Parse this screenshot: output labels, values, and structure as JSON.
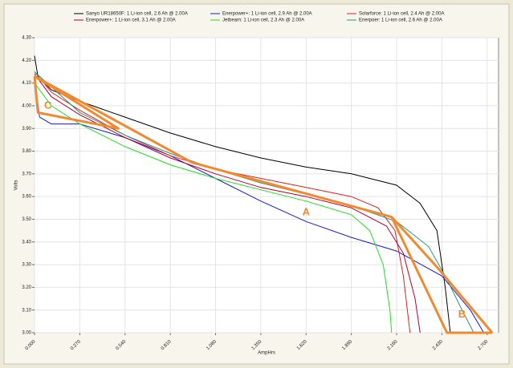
{
  "chart_data": {
    "type": "line",
    "x_label": "AmpHrs",
    "y_label": "Volts",
    "xlim": [
      0,
      2.768
    ],
    "ylim": [
      3.0,
      4.3
    ],
    "xticks": [
      {
        "value": 0,
        "label": "0.000"
      },
      {
        "value": 0.27,
        "label": "0.270"
      },
      {
        "value": 0.54,
        "label": "0.540"
      },
      {
        "value": 0.81,
        "label": "0.810"
      },
      {
        "value": 1.08,
        "label": "1.080"
      },
      {
        "value": 1.35,
        "label": "1.350"
      },
      {
        "value": 1.62,
        "label": "1.620"
      },
      {
        "value": 1.89,
        "label": "1.890"
      },
      {
        "value": 2.16,
        "label": "2.160"
      },
      {
        "value": 2.43,
        "label": "2.430"
      },
      {
        "value": 2.7,
        "label": "2.700"
      }
    ],
    "yticks": [
      {
        "value": 3.0,
        "label": "3.00"
      },
      {
        "value": 3.1,
        "label": "3.10"
      },
      {
        "value": 3.2,
        "label": "3.20"
      },
      {
        "value": 3.3,
        "label": "3.30"
      },
      {
        "value": 3.4,
        "label": "3.40"
      },
      {
        "value": 3.5,
        "label": "3.50"
      },
      {
        "value": 3.6,
        "label": "3.60"
      },
      {
        "value": 3.7,
        "label": "3.70"
      },
      {
        "value": 3.8,
        "label": "3.80"
      },
      {
        "value": 3.9,
        "label": "3.90"
      },
      {
        "value": 4.0,
        "label": "4.00"
      },
      {
        "value": 4.1,
        "label": "4.10"
      },
      {
        "value": 4.2,
        "label": "4.20"
      },
      {
        "value": 4.3,
        "label": "4.30"
      }
    ],
    "grid": true,
    "series": [
      {
        "name": "Sanyo UR18650F: 1 Li-ion cell, 2.6 Ah @ 2.00A",
        "color": "#000000",
        "x": [
          0,
          0.02,
          0.1,
          0.27,
          0.54,
          0.81,
          1.08,
          1.35,
          1.62,
          1.89,
          2.16,
          2.3,
          2.4,
          2.45,
          2.48
        ],
        "values": [
          4.22,
          4.13,
          4.07,
          4.02,
          3.95,
          3.88,
          3.82,
          3.77,
          3.73,
          3.7,
          3.65,
          3.57,
          3.45,
          3.2,
          3.0
        ]
      },
      {
        "name": "Enerpower+: 1 Li-ion cell, 2.9 Ah @ 2.00A",
        "color": "#1a1acc",
        "x": [
          0,
          0.03,
          0.1,
          0.2,
          0.27,
          0.54,
          0.81,
          1.08,
          1.35,
          1.62,
          1.89,
          2.16,
          2.43,
          2.6,
          2.68
        ],
        "values": [
          4.13,
          3.95,
          3.92,
          3.92,
          3.92,
          3.86,
          3.78,
          3.68,
          3.58,
          3.49,
          3.42,
          3.36,
          3.25,
          3.1,
          3.0
        ]
      },
      {
        "name": "Solarforce: 1 Li-ion cell, 2.4 Ah @ 2.00A",
        "color": "#e02020",
        "x": [
          0,
          0.1,
          0.27,
          0.54,
          0.81,
          1.08,
          1.35,
          1.62,
          1.89,
          2.05,
          2.15,
          2.2,
          2.24
        ],
        "values": [
          4.15,
          4.06,
          3.98,
          3.87,
          3.78,
          3.72,
          3.68,
          3.64,
          3.6,
          3.55,
          3.45,
          3.25,
          3.0
        ]
      },
      {
        "name": "Enerpower+: 1 Li-ion cell, 3.1 Ah @ 2.00A",
        "color": "#b00030",
        "x": [
          0,
          0.1,
          0.27,
          0.54,
          0.81,
          1.08,
          1.35,
          1.62,
          1.89,
          2.1,
          2.2,
          2.27,
          2.3
        ],
        "values": [
          4.14,
          4.04,
          3.96,
          3.86,
          3.77,
          3.7,
          3.64,
          3.6,
          3.55,
          3.47,
          3.35,
          3.15,
          3.0
        ]
      },
      {
        "name": "Jetbeam: 1 Li-ion cell, 2.3 Ah @ 2.00A",
        "color": "#22dd22",
        "x": [
          0,
          0.1,
          0.27,
          0.54,
          0.81,
          1.08,
          1.35,
          1.62,
          1.89,
          2.0,
          2.08,
          2.12,
          2.13
        ],
        "values": [
          4.1,
          4.0,
          3.92,
          3.82,
          3.74,
          3.68,
          3.63,
          3.58,
          3.52,
          3.45,
          3.3,
          3.1,
          3.0
        ]
      },
      {
        "name": "Enerpoer: 1 Li-ion cell, 2.6 Ah @ 2.00A",
        "color": "#229977",
        "x": [
          0,
          0.27,
          0.54,
          0.81,
          1.08,
          1.35,
          1.62,
          1.89,
          2.16,
          2.35,
          2.45,
          2.55,
          2.62
        ],
        "values": [
          4.15,
          3.97,
          3.87,
          3.79,
          3.72,
          3.66,
          3.61,
          3.56,
          3.49,
          3.38,
          3.25,
          3.1,
          3.0
        ]
      }
    ],
    "annotations": [
      {
        "label": "A",
        "x": 1.62,
        "y": 3.53,
        "color": "#f08a30",
        "points_x": [
          0,
          0.94,
          2.13,
          2.4,
          2.73
        ],
        "points_y": [
          4.13,
          3.75,
          3.51,
          3.29,
          3.0
        ]
      },
      {
        "label": "B",
        "x": 2.55,
        "y": 3.08,
        "color": "#f08a30",
        "points_x": [
          2.13,
          2.46,
          2.73
        ],
        "points_y": [
          3.51,
          3.0,
          3.0
        ]
      },
      {
        "label": "C",
        "x": 0.08,
        "y": 4.0,
        "color": "#f08a30",
        "points_x": [
          0,
          0.02,
          0.5,
          0
        ],
        "points_y": [
          4.13,
          3.97,
          3.9,
          4.13
        ]
      }
    ]
  }
}
